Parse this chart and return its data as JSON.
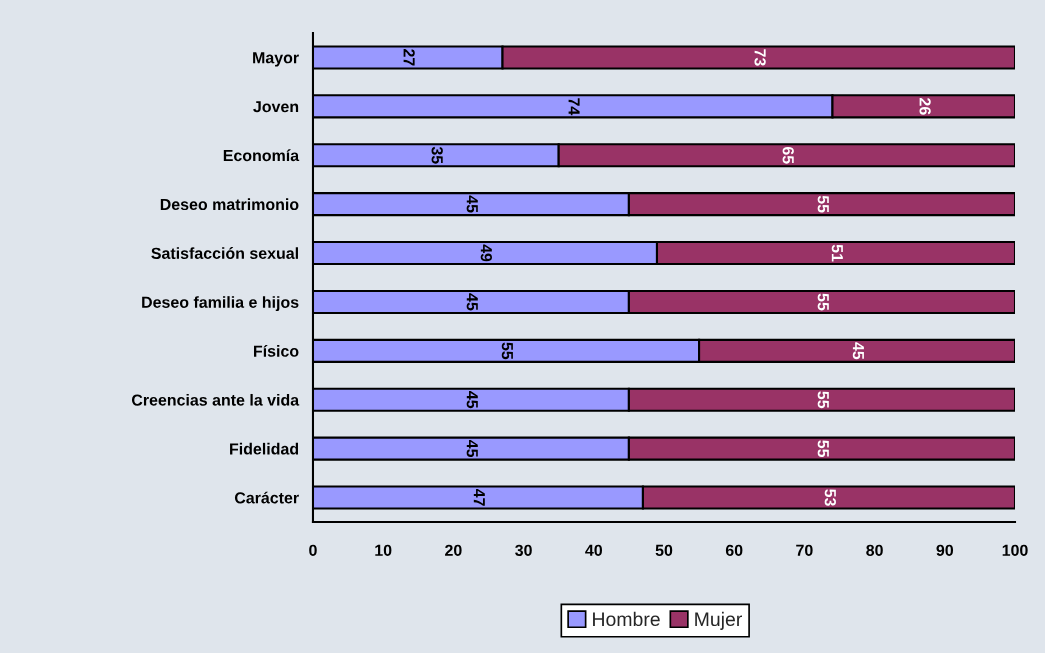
{
  "chart_data": {
    "type": "bar",
    "orientation": "horizontal",
    "stacked": true,
    "categories": [
      "Mayor",
      "Joven",
      "Economía",
      "Deseo matrimonio",
      "Satisfacción sexual",
      "Deseo familia e hijos",
      "Físico",
      "Creencias ante la vida",
      "Fidelidad",
      "Carácter"
    ],
    "series": [
      {
        "name": "Hombre",
        "color": "#9999ff",
        "values": [
          27,
          74,
          35,
          45,
          49,
          45,
          55,
          45,
          45,
          47
        ]
      },
      {
        "name": "Mujer",
        "color": "#993366",
        "values": [
          73,
          26,
          65,
          55,
          51,
          55,
          45,
          55,
          55,
          53
        ]
      }
    ],
    "xlim": [
      0,
      100
    ],
    "xticks": [
      0,
      10,
      20,
      30,
      40,
      50,
      60,
      70,
      80,
      90,
      100
    ],
    "data_labels": true,
    "legend": "bottom",
    "grid": false
  }
}
